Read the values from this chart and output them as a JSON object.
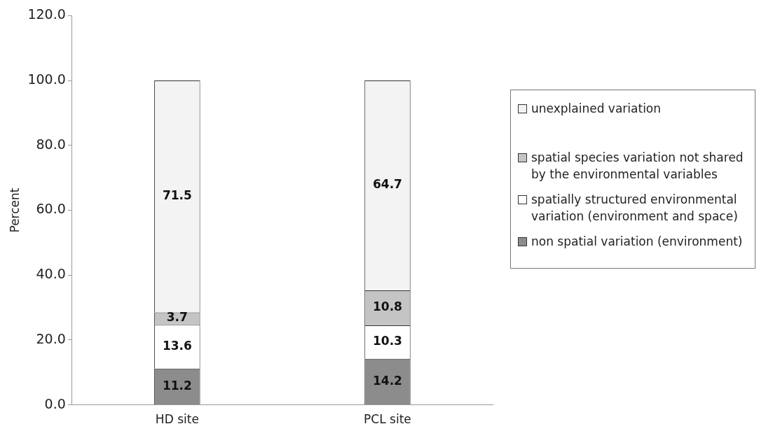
{
  "chart_data": {
    "type": "bar",
    "stacked": true,
    "ylabel": "Percent",
    "categories": [
      "HD site",
      "PCL site"
    ],
    "series": [
      {
        "name": "non spatial variation (environment)",
        "color": "#8c8c8c",
        "values": [
          11.2,
          14.2
        ]
      },
      {
        "name": "spatially structured environmental variation (environment and space)",
        "color": "#ffffff",
        "values": [
          13.6,
          10.3
        ]
      },
      {
        "name": "spatial species variation not shared by the environmental variables",
        "color": "#c4c4c4",
        "values": [
          3.7,
          10.8
        ]
      },
      {
        "name": "unexplained variation",
        "color": "#f3f3f3",
        "values": [
          71.5,
          64.7
        ]
      }
    ],
    "ylim": [
      0,
      120
    ],
    "yticks": [
      {
        "value": 0,
        "label": "0.0"
      },
      {
        "value": 20,
        "label": "20.0"
      },
      {
        "value": 40,
        "label": "40.0"
      },
      {
        "value": 60,
        "label": "60.0"
      },
      {
        "value": 80,
        "label": "80.0"
      },
      {
        "value": 100,
        "label": "100.0"
      },
      {
        "value": 120,
        "label": "120.0"
      }
    ],
    "grid": false,
    "legend": "right",
    "data_labels": true
  }
}
